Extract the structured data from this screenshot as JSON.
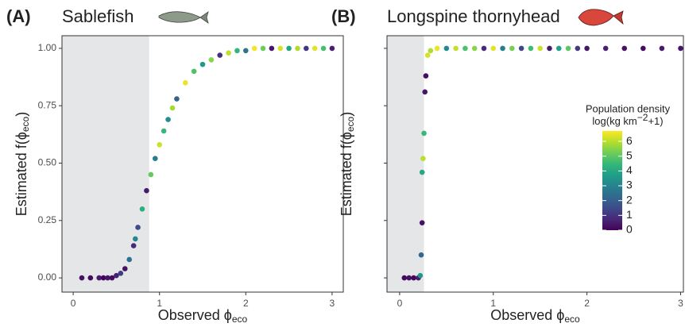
{
  "chart_data": [
    {
      "type": "scatter",
      "panel_label": "(A)",
      "title": "Sablefish",
      "x_label": {
        "text": "Observed ϕ",
        "sub": "eco"
      },
      "y_label": {
        "text": "Estimated f(ϕ",
        "sub": "eco",
        "tail": ")"
      },
      "xlim": [
        -0.13,
        3.13
      ],
      "ylim": [
        -0.062,
        1.055
      ],
      "xticks": [
        0,
        1,
        2,
        3
      ],
      "yticks": [
        {
          "value": 0,
          "label": "0.00"
        },
        {
          "value": 0.25,
          "label": "0.25"
        },
        {
          "value": 0.5,
          "label": "0.50"
        },
        {
          "value": 0.75,
          "label": "0.75"
        },
        {
          "value": 1,
          "label": "1.00"
        }
      ],
      "show_ytick_labels": true,
      "shade_xmax": 0.88,
      "x": [
        0.1,
        0.2,
        0.3,
        0.35,
        0.4,
        0.45,
        0.5,
        0.55,
        0.6,
        0.65,
        0.7,
        0.72,
        0.75,
        0.8,
        0.85,
        0.9,
        0.95,
        1.0,
        1.05,
        1.1,
        1.15,
        1.2,
        1.3,
        1.4,
        1.5,
        1.6,
        1.7,
        1.8,
        1.9,
        2.0,
        2.1,
        2.2,
        2.3,
        2.4,
        2.5,
        2.6,
        2.7,
        2.8,
        2.9,
        3.0
      ],
      "y": [
        0,
        0,
        0,
        0,
        0,
        0,
        0.01,
        0.02,
        0.04,
        0.08,
        0.14,
        0.17,
        0.22,
        0.3,
        0.38,
        0.45,
        0.52,
        0.58,
        0.64,
        0.69,
        0.74,
        0.78,
        0.85,
        0.9,
        0.93,
        0.95,
        0.97,
        0.98,
        0.99,
        0.99,
        1,
        1,
        1,
        1,
        1,
        1,
        1,
        1,
        1,
        1
      ],
      "density": [
        0.3,
        0.2,
        0.5,
        0.1,
        0.4,
        0.2,
        0.6,
        1.2,
        0.3,
        2.5,
        0.8,
        3.1,
        1.5,
        4.2,
        0.5,
        5.1,
        2.8,
        6.2,
        4.5,
        3.3,
        5.8,
        2.1,
        6.5,
        4.8,
        3.6,
        5.5,
        0.9,
        6.1,
        4.4,
        2.6,
        6.6,
        5.2,
        0.4,
        6.3,
        3.9,
        5.9,
        1.1,
        6.4,
        4.7,
        0.6
      ]
    },
    {
      "type": "scatter",
      "panel_label": "(B)",
      "title": "Longspine thornyhead",
      "x_label": {
        "text": "Observed ϕ",
        "sub": "eco"
      },
      "y_label": {
        "text": "Estimated f(ϕ",
        "sub": "eco",
        "tail": ")"
      },
      "xlim": [
        -0.135,
        3.03
      ],
      "ylim": [
        -0.062,
        1.055
      ],
      "xticks": [
        0,
        1,
        2,
        3
      ],
      "yticks": [
        0,
        0.25,
        0.5,
        0.75,
        1
      ],
      "show_ytick_labels": false,
      "shade_xmax": 0.26,
      "x": [
        0.05,
        0.1,
        0.15,
        0.2,
        0.22,
        0.23,
        0.24,
        0.24,
        0.25,
        0.26,
        0.27,
        0.28,
        0.3,
        0.33,
        0.4,
        0.5,
        0.6,
        0.7,
        0.8,
        0.9,
        1.0,
        1.1,
        1.2,
        1.3,
        1.4,
        1.5,
        1.6,
        1.7,
        1.8,
        1.9,
        2.0,
        2.2,
        2.4,
        2.6,
        2.8,
        3.0
      ],
      "y": [
        0,
        0,
        0,
        0,
        0.01,
        0.1,
        0.24,
        0.46,
        0.52,
        0.63,
        0.81,
        0.88,
        0.97,
        0.99,
        1,
        1,
        1,
        1,
        1,
        1,
        1,
        1,
        1,
        1,
        1,
        1,
        1,
        1,
        1,
        1,
        1,
        1,
        1,
        1,
        1,
        1
      ],
      "density": [
        0.2,
        0.3,
        0.1,
        0.5,
        3.5,
        2.2,
        0.3,
        4.0,
        6.0,
        4.5,
        0.4,
        0.3,
        6.3,
        5.9,
        6.5,
        3.2,
        6.1,
        4.8,
        5.5,
        0.8,
        6.4,
        2.9,
        5.3,
        1.4,
        4.6,
        6.2,
        0.5,
        3.8,
        5.0,
        1.2,
        0.4,
        0.6,
        0.3,
        0.2,
        0.5,
        0.4
      ],
      "colorbar": {
        "title": "Population density",
        "subtitle": {
          "text": "log(kg km",
          "sup": "−2",
          "tail": "+1)"
        },
        "lim": [
          0,
          6.7
        ],
        "ticks": [
          0,
          1,
          2,
          3,
          4,
          5,
          6
        ],
        "colormap": "viridis"
      }
    }
  ]
}
